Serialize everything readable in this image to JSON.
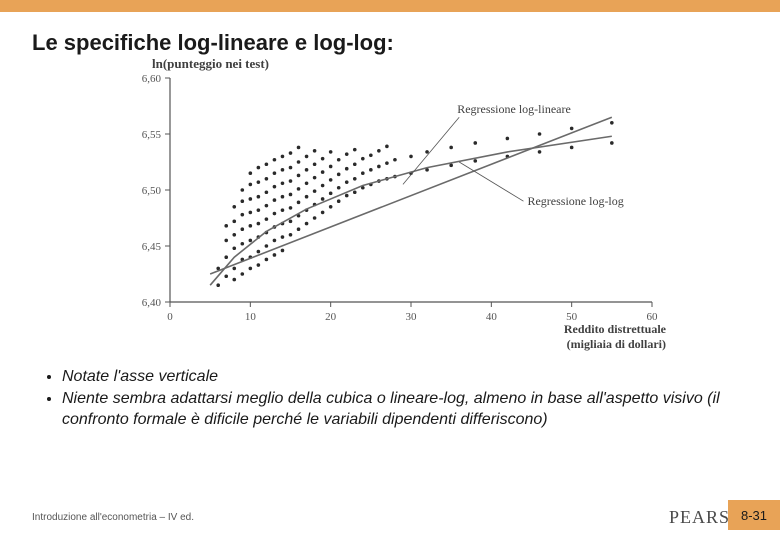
{
  "title": "Le specifiche log-lineare e log-log:",
  "bullets": [
    "Notate l'asse verticale",
    "Niente sembra adattarsi meglio della cubica o lineare-log, almeno in base all'aspetto visivo (il confronto formale è dificile perché le variabili dipendenti differiscono)"
  ],
  "footer_left": "Introduzione all'econometria – IV ed.",
  "brand": "PEARSON",
  "page_number": "8-31",
  "chart": {
    "type": "scatter",
    "y_title": "ln(punteggio nei test)",
    "x_title_line1": "Reddito distrettuale",
    "x_title_line2": "(migliaia di dollari)",
    "label_line_linear": "Regressione log-lineare",
    "label_line_loglog": "Regressione log-log",
    "xlim": [
      0,
      60
    ],
    "ylim": [
      6.4,
      6.6
    ],
    "xticks": [
      0,
      10,
      20,
      30,
      40,
      50,
      60
    ],
    "yticks": [
      6.4,
      6.45,
      6.5,
      6.55,
      6.6
    ],
    "ytick_labels": [
      "6,40",
      "6,45",
      "6,50",
      "6,55",
      "6,60"
    ],
    "axis_color": "#555555",
    "tick_fontsize": 11,
    "point_color": "#2a2a2a",
    "point_radius": 1.8,
    "line_linear": {
      "color": "#6a6a6a",
      "width": 1.6,
      "p1": [
        5,
        6.425
      ],
      "p2": [
        55,
        6.565
      ]
    },
    "line_loglog": {
      "color": "#6a6a6a",
      "width": 1.6,
      "pts": [
        [
          5,
          6.415
        ],
        [
          8,
          6.44
        ],
        [
          12,
          6.463
        ],
        [
          17,
          6.483
        ],
        [
          24,
          6.504
        ],
        [
          32,
          6.52
        ],
        [
          42,
          6.534
        ],
        [
          55,
          6.548
        ]
      ]
    },
    "callout_linear": {
      "from": [
        36,
        6.565
      ],
      "to": [
        29,
        6.505
      ]
    },
    "callout_loglog": {
      "from": [
        44,
        6.49
      ],
      "to": [
        36,
        6.525
      ]
    },
    "scatter": [
      [
        6,
        6.415
      ],
      [
        6,
        6.43
      ],
      [
        7,
        6.44
      ],
      [
        7,
        6.455
      ],
      [
        7,
        6.423
      ],
      [
        7,
        6.468
      ],
      [
        8,
        6.43
      ],
      [
        8,
        6.448
      ],
      [
        8,
        6.46
      ],
      [
        8,
        6.472
      ],
      [
        8,
        6.42
      ],
      [
        8,
        6.485
      ],
      [
        9,
        6.438
      ],
      [
        9,
        6.452
      ],
      [
        9,
        6.465
      ],
      [
        9,
        6.478
      ],
      [
        9,
        6.49
      ],
      [
        9,
        6.425
      ],
      [
        9,
        6.5
      ],
      [
        10,
        6.44
      ],
      [
        10,
        6.455
      ],
      [
        10,
        6.468
      ],
      [
        10,
        6.48
      ],
      [
        10,
        6.492
      ],
      [
        10,
        6.505
      ],
      [
        10,
        6.43
      ],
      [
        10,
        6.515
      ],
      [
        11,
        6.445
      ],
      [
        11,
        6.458
      ],
      [
        11,
        6.47
      ],
      [
        11,
        6.482
      ],
      [
        11,
        6.494
      ],
      [
        11,
        6.507
      ],
      [
        11,
        6.52
      ],
      [
        11,
        6.433
      ],
      [
        12,
        6.45
      ],
      [
        12,
        6.462
      ],
      [
        12,
        6.474
      ],
      [
        12,
        6.486
      ],
      [
        12,
        6.498
      ],
      [
        12,
        6.51
      ],
      [
        12,
        6.523
      ],
      [
        12,
        6.438
      ],
      [
        13,
        6.455
      ],
      [
        13,
        6.467
      ],
      [
        13,
        6.479
      ],
      [
        13,
        6.491
      ],
      [
        13,
        6.503
      ],
      [
        13,
        6.515
      ],
      [
        13,
        6.527
      ],
      [
        13,
        6.442
      ],
      [
        14,
        6.458
      ],
      [
        14,
        6.47
      ],
      [
        14,
        6.482
      ],
      [
        14,
        6.494
      ],
      [
        14,
        6.506
      ],
      [
        14,
        6.518
      ],
      [
        14,
        6.53
      ],
      [
        14,
        6.446
      ],
      [
        15,
        6.46
      ],
      [
        15,
        6.472
      ],
      [
        15,
        6.484
      ],
      [
        15,
        6.496
      ],
      [
        15,
        6.508
      ],
      [
        15,
        6.52
      ],
      [
        15,
        6.533
      ],
      [
        16,
        6.465
      ],
      [
        16,
        6.477
      ],
      [
        16,
        6.489
      ],
      [
        16,
        6.501
      ],
      [
        16,
        6.513
      ],
      [
        16,
        6.525
      ],
      [
        16,
        6.538
      ],
      [
        17,
        6.47
      ],
      [
        17,
        6.482
      ],
      [
        17,
        6.494
      ],
      [
        17,
        6.506
      ],
      [
        17,
        6.518
      ],
      [
        17,
        6.53
      ],
      [
        18,
        6.475
      ],
      [
        18,
        6.487
      ],
      [
        18,
        6.499
      ],
      [
        18,
        6.511
      ],
      [
        18,
        6.523
      ],
      [
        18,
        6.535
      ],
      [
        19,
        6.48
      ],
      [
        19,
        6.492
      ],
      [
        19,
        6.504
      ],
      [
        19,
        6.516
      ],
      [
        19,
        6.528
      ],
      [
        20,
        6.485
      ],
      [
        20,
        6.497
      ],
      [
        20,
        6.509
      ],
      [
        20,
        6.521
      ],
      [
        20,
        6.534
      ],
      [
        21,
        6.49
      ],
      [
        21,
        6.502
      ],
      [
        21,
        6.514
      ],
      [
        21,
        6.527
      ],
      [
        22,
        6.495
      ],
      [
        22,
        6.507
      ],
      [
        22,
        6.519
      ],
      [
        22,
        6.532
      ],
      [
        23,
        6.498
      ],
      [
        23,
        6.51
      ],
      [
        23,
        6.523
      ],
      [
        23,
        6.536
      ],
      [
        24,
        6.502
      ],
      [
        24,
        6.515
      ],
      [
        24,
        6.528
      ],
      [
        25,
        6.505
      ],
      [
        25,
        6.518
      ],
      [
        25,
        6.531
      ],
      [
        26,
        6.508
      ],
      [
        26,
        6.521
      ],
      [
        26,
        6.535
      ],
      [
        27,
        6.51
      ],
      [
        27,
        6.524
      ],
      [
        27,
        6.539
      ],
      [
        28,
        6.512
      ],
      [
        28,
        6.527
      ],
      [
        30,
        6.515
      ],
      [
        30,
        6.53
      ],
      [
        32,
        6.518
      ],
      [
        32,
        6.534
      ],
      [
        35,
        6.522
      ],
      [
        35,
        6.538
      ],
      [
        38,
        6.526
      ],
      [
        38,
        6.542
      ],
      [
        42,
        6.53
      ],
      [
        42,
        6.546
      ],
      [
        46,
        6.534
      ],
      [
        46,
        6.55
      ],
      [
        50,
        6.538
      ],
      [
        50,
        6.555
      ],
      [
        55,
        6.542
      ],
      [
        55,
        6.56
      ]
    ]
  }
}
